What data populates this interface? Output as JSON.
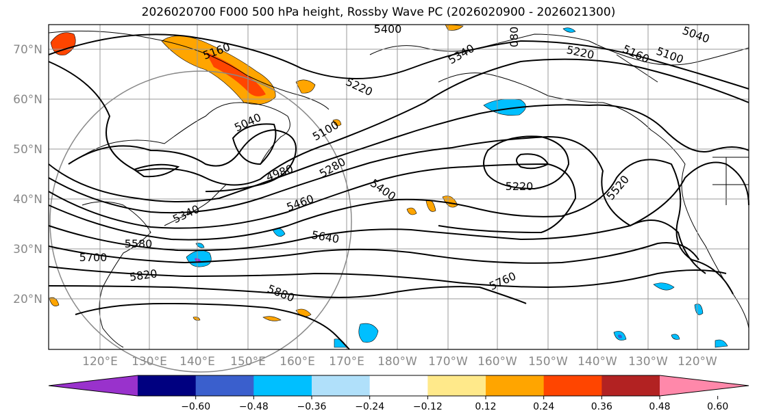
{
  "title": "2026020700 F000 500 hPa height, Rossby Wave PC (2026020900 - 2026021300)",
  "map": {
    "lat_labels": [
      "70°N",
      "60°N",
      "50°N",
      "40°N",
      "30°N",
      "20°N"
    ],
    "lon_labels": [
      "120°E",
      "130°E",
      "140°E",
      "150°E",
      "160°E",
      "170°E",
      "180°W",
      "170°W",
      "160°W",
      "150°W",
      "140°W",
      "130°W",
      "120°W"
    ],
    "contour_labels": [
      "5400",
      "5160",
      "5220",
      "5340",
      "080",
      "5040",
      "5160",
      "5100",
      "5220",
      "5040",
      "5100",
      "4980",
      "5280",
      "5400",
      "5220",
      "5460",
      "5340",
      "5520",
      "5580",
      "5640",
      "5700",
      "5820",
      "5760",
      "5880"
    ]
  },
  "colorbar": {
    "ticks": [
      "−0.60",
      "−0.48",
      "−0.36",
      "−0.24",
      "−0.12",
      "0.12",
      "0.24",
      "0.36",
      "0.48",
      "0.60"
    ],
    "colors": [
      "#9932cc",
      "#000080",
      "#3a5fcd",
      "#00bfff",
      "#b0e0fa",
      "#ffffff",
      "#ffe98a",
      "#ffa500",
      "#ff4500",
      "#b22222",
      "#ff88aa"
    ]
  }
}
